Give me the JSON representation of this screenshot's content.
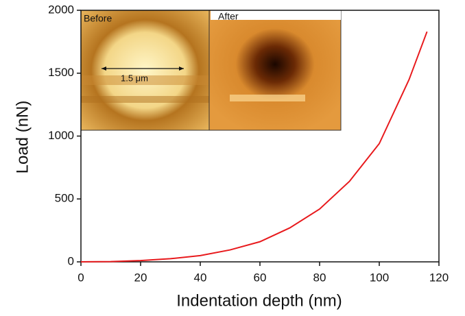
{
  "chart_data": {
    "type": "line",
    "x_label": "Indentation depth (nm)",
    "y_label": "Load (nN)",
    "x": [
      0,
      10,
      20,
      30,
      40,
      50,
      60,
      70,
      80,
      90,
      100,
      110,
      116
    ],
    "values": [
      0,
      2,
      10,
      25,
      50,
      95,
      160,
      270,
      420,
      640,
      940,
      1450,
      1830
    ],
    "color": "#e8191c",
    "xlim": [
      0,
      120
    ],
    "xticks": [
      0,
      20,
      40,
      60,
      80,
      100,
      120
    ],
    "ylim": [
      0,
      2000
    ],
    "yticks": [
      0,
      500,
      1000,
      1500,
      2000
    ],
    "annotations": [
      "Before",
      "After",
      "1.5 μm"
    ]
  }
}
